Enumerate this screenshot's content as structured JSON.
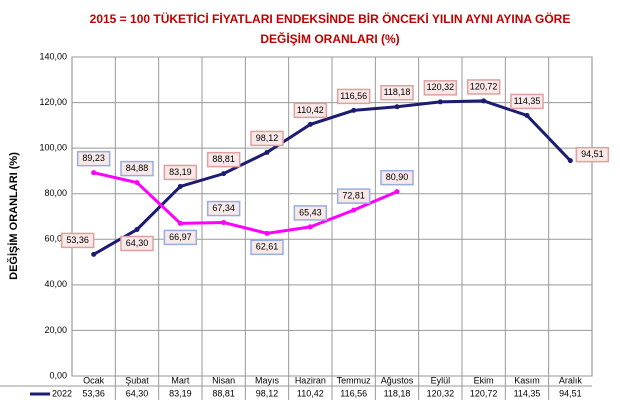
{
  "chart_data": {
    "type": "line",
    "title": "2015 = 100 TÜKETİCİ FİYATLARI ENDEKSİNDE BİR ÖNCEKİ YILIN AYNI AYINA GÖRE",
    "subtitle": "DEĞİŞİM ORANLARI (%)",
    "y_label": "DEĞİŞİM ORANLARI (%)",
    "categories": [
      "Ocak",
      "Şubat",
      "Mart",
      "Nisan",
      "Mayıs",
      "Haziran",
      "Temmuz",
      "Ağustos",
      "Eylül",
      "Ekim",
      "Kasım",
      "Aralık"
    ],
    "series": [
      {
        "name": "2022",
        "color": "#1c1c72",
        "values": [
          53.36,
          64.3,
          83.19,
          88.81,
          98.12,
          110.42,
          116.56,
          118.18,
          120.32,
          120.72,
          114.35,
          94.51
        ],
        "value_labels": [
          "53,36",
          "64,30",
          "83,19",
          "88,81",
          "98,12",
          "110,42",
          "116,56",
          "118,18",
          "120,32",
          "120,72",
          "114,35",
          "94,51"
        ]
      },
      {
        "color": "#ff00ff",
        "values": [
          89.23,
          84.88,
          66.97,
          67.34,
          62.61,
          65.43,
          72.81,
          80.9,
          null,
          null,
          null,
          null
        ],
        "value_labels": [
          "89,23",
          "84,88",
          "66,97",
          "67,34",
          "62,61",
          "65,43",
          "72,81",
          "80,90",
          null,
          null,
          null,
          null
        ]
      }
    ],
    "ylim": [
      0,
      140
    ],
    "yticks": [
      {
        "value": 0,
        "label": "0,00"
      },
      {
        "value": 20,
        "label": "20,00"
      },
      {
        "value": 40,
        "label": "40,00"
      },
      {
        "value": 60,
        "label": "60,00"
      },
      {
        "value": 80,
        "label": "80,00"
      },
      {
        "value": 100,
        "label": "100,00"
      },
      {
        "value": 120,
        "label": "120,00"
      },
      {
        "value": 140,
        "label": "140,00"
      }
    ],
    "grid": true
  }
}
